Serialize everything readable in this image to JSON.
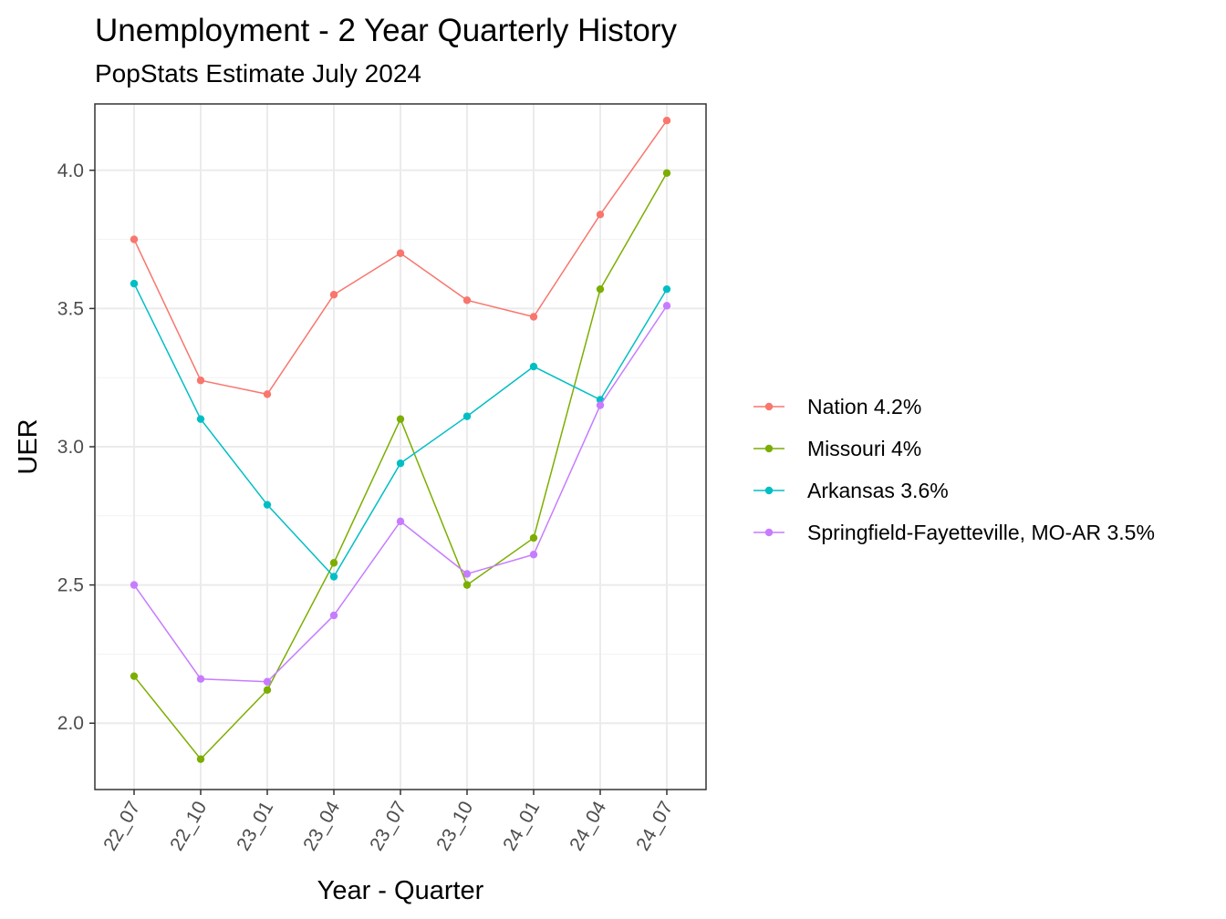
{
  "chart_data": {
    "type": "line",
    "title": "Unemployment - 2 Year Quarterly History",
    "subtitle": "PopStats Estimate July 2024",
    "xlabel": "Year - Quarter",
    "ylabel": "UER",
    "categories": [
      "22_07",
      "22_10",
      "23_01",
      "23_04",
      "23_07",
      "23_10",
      "24_01",
      "24_04",
      "24_07"
    ],
    "yticks": [
      "2.0",
      "2.5",
      "3.0",
      "3.5",
      "4.0"
    ],
    "ylim": [
      1.76,
      4.24
    ],
    "grid": true,
    "legend_position": "right",
    "series": [
      {
        "name": "Nation 4.2%",
        "color": "#F8766D",
        "values": [
          3.75,
          3.24,
          3.19,
          3.55,
          3.7,
          3.53,
          3.47,
          3.84,
          4.18
        ]
      },
      {
        "name": "Missouri 4%",
        "color": "#7CAE00",
        "values": [
          2.17,
          1.87,
          2.12,
          2.58,
          3.1,
          2.5,
          2.67,
          3.57,
          3.99
        ]
      },
      {
        "name": "Arkansas 3.6%",
        "color": "#00BFC4",
        "values": [
          3.59,
          3.1,
          2.79,
          2.53,
          2.94,
          3.11,
          3.29,
          3.17,
          3.57
        ]
      },
      {
        "name": "Springfield-Fayetteville, MO-AR 3.5%",
        "color": "#C77CFF",
        "values": [
          2.5,
          2.16,
          2.15,
          2.39,
          2.73,
          2.54,
          2.61,
          3.15,
          3.51
        ]
      }
    ]
  }
}
